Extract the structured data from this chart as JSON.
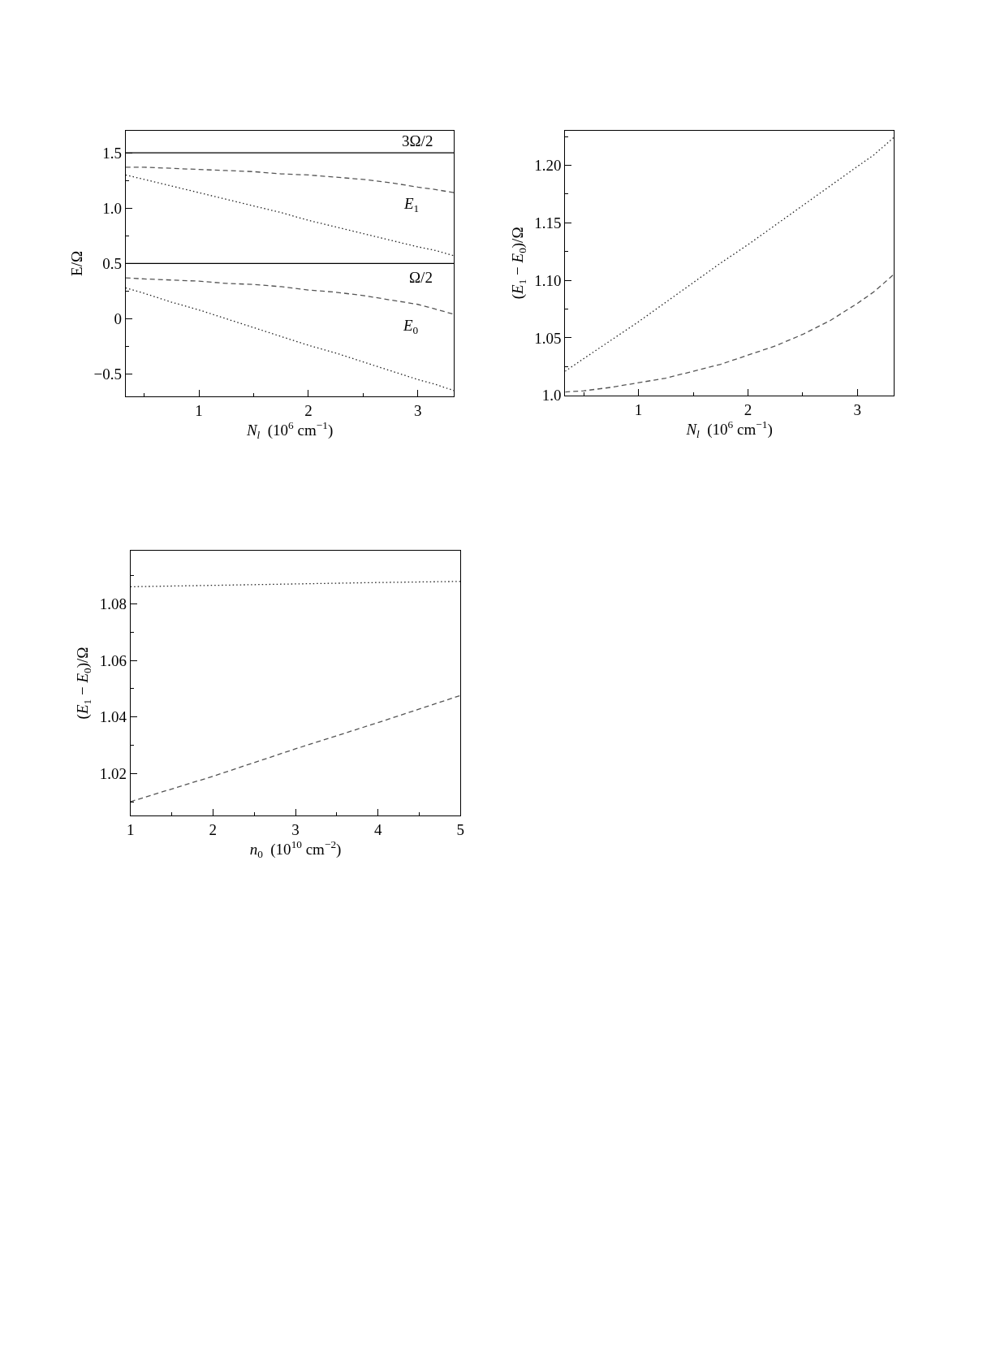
{
  "chart_data": [
    {
      "type": "line",
      "xlabel": "N$_{l}$  (10$^{6}$ cm$^{−1}$)",
      "ylabel": "E/Ω",
      "x": [
        0.33,
        0.5,
        0.75,
        1,
        1.25,
        1.5,
        1.75,
        2,
        2.25,
        2.5,
        2.75,
        3,
        3.15,
        3.33
      ],
      "series": [
        {
          "color": "#555555",
          "line_style": "dashed",
          "values": [
            1.37,
            1.37,
            1.36,
            1.35,
            1.34,
            1.33,
            1.31,
            1.3,
            1.28,
            1.26,
            1.23,
            1.19,
            1.17,
            1.14
          ]
        },
        {
          "color": "#222222",
          "line_style": "dotted",
          "values": [
            1.3,
            1.26,
            1.2,
            1.14,
            1.08,
            1.02,
            0.96,
            0.89,
            0.83,
            0.77,
            0.71,
            0.65,
            0.62,
            0.57
          ]
        },
        {
          "color": "#555555",
          "line_style": "dashed",
          "values": [
            0.37,
            0.36,
            0.35,
            0.34,
            0.32,
            0.31,
            0.29,
            0.26,
            0.24,
            0.21,
            0.17,
            0.13,
            0.09,
            0.04
          ]
        },
        {
          "color": "#222222",
          "line_style": "dotted",
          "values": [
            0.28,
            0.23,
            0.15,
            0.08,
            0.0,
            -0.08,
            -0.16,
            -0.24,
            -0.31,
            -0.39,
            -0.47,
            -0.55,
            -0.59,
            -0.65
          ]
        }
      ],
      "ref_lines": [
        {
          "axis": "y",
          "value": 1.5,
          "label": "3Ω/2",
          "color": "#000000",
          "line_style": "solid"
        },
        {
          "axis": "y",
          "value": 0.5,
          "label": "Ω/2",
          "color": "#000000",
          "line_style": "solid"
        }
      ],
      "annotations": [
        {
          "text": "E$_{1}$",
          "x": 3.33,
          "y": 1.14
        },
        {
          "text": "E$_{0}$",
          "x": 3.33,
          "y": 0.04
        }
      ],
      "xlim": [
        0.33,
        3.33
      ],
      "ylim": [
        -0.7,
        1.7
      ],
      "xticks": [
        {
          "value": 0.5,
          "label": null
        },
        1,
        {
          "value": 1.5,
          "label": null
        },
        2,
        {
          "value": 2.5,
          "label": null
        },
        3
      ],
      "yticks": [
        {
          "value": -0.5,
          "label": "−0.5"
        },
        {
          "value": -0.25,
          "label": null
        },
        0,
        {
          "value": 0.25,
          "label": null
        },
        0.5,
        {
          "value": 0.75,
          "label": null
        },
        {
          "value": 1,
          "label": "1.0"
        },
        {
          "value": 1.25,
          "label": null
        },
        1.5
      ]
    },
    {
      "type": "line",
      "xlabel": "N$_{l}$  (10$^{6}$ cm$^{−1}$)",
      "ylabel": "(E$_{1}$ − E$_{0}$)/Ω",
      "x": [
        0.33,
        0.5,
        0.75,
        1,
        1.25,
        1.5,
        1.75,
        2,
        2.25,
        2.5,
        2.75,
        3,
        3.15,
        3.33
      ],
      "series": [
        {
          "color": "#222222",
          "line_style": "dotted",
          "values": [
            1.021,
            1.032,
            1.048,
            1.064,
            1.081,
            1.098,
            1.115,
            1.131,
            1.148,
            1.165,
            1.182,
            1.199,
            1.209,
            1.224
          ]
        },
        {
          "color": "#555555",
          "line_style": "dashed",
          "values": [
            1.003,
            1.004,
            1.007,
            1.011,
            1.015,
            1.021,
            1.027,
            1.035,
            1.043,
            1.053,
            1.065,
            1.08,
            1.09,
            1.105
          ]
        }
      ],
      "xlim": [
        0.33,
        3.33
      ],
      "ylim": [
        1.0,
        1.23
      ],
      "xticks": [
        {
          "value": 0.5,
          "label": null
        },
        1,
        {
          "value": 1.5,
          "label": null
        },
        2,
        {
          "value": 2.5,
          "label": null
        },
        3
      ],
      "yticks": [
        {
          "value": 1,
          "label": "1.0"
        },
        {
          "value": 1.025,
          "label": null
        },
        1.05,
        {
          "value": 1.075,
          "label": null
        },
        {
          "value": 1.1,
          "label": "1.10"
        },
        {
          "value": 1.125,
          "label": null
        },
        1.15,
        {
          "value": 1.175,
          "label": null
        },
        {
          "value": 1.2,
          "label": "1.20"
        },
        {
          "value": 1.225,
          "label": null
        }
      ]
    },
    {
      "type": "line",
      "xlabel": "n$_{0}$  (10$^{10}$ cm$^{−2}$)",
      "ylabel": "(E$_{1}$ − E$_{0}$)/Ω",
      "x": [
        1,
        2,
        3,
        4,
        5
      ],
      "series": [
        {
          "color": "#222222",
          "line_style": "dotted",
          "values": [
            1.0861,
            1.0866,
            1.0871,
            1.0876,
            1.088
          ]
        },
        {
          "color": "#555555",
          "line_style": "dashed",
          "values": [
            1.01,
            1.019,
            1.0287,
            1.038,
            1.0476
          ]
        }
      ],
      "xlim": [
        1,
        5
      ],
      "ylim": [
        1.005,
        1.099
      ],
      "xticks": [
        1,
        {
          "value": 1.5,
          "label": null
        },
        2,
        {
          "value": 2.5,
          "label": null
        },
        3,
        {
          "value": 3.5,
          "label": null
        },
        4,
        {
          "value": 4.5,
          "label": null
        },
        5
      ],
      "yticks": [
        {
          "value": 1.01,
          "label": null
        },
        1.02,
        {
          "value": 1.03,
          "label": null
        },
        1.04,
        {
          "value": 1.05,
          "label": null
        },
        1.06,
        {
          "value": 1.07,
          "label": null
        },
        1.08,
        {
          "value": 1.09,
          "label": null
        }
      ]
    }
  ]
}
